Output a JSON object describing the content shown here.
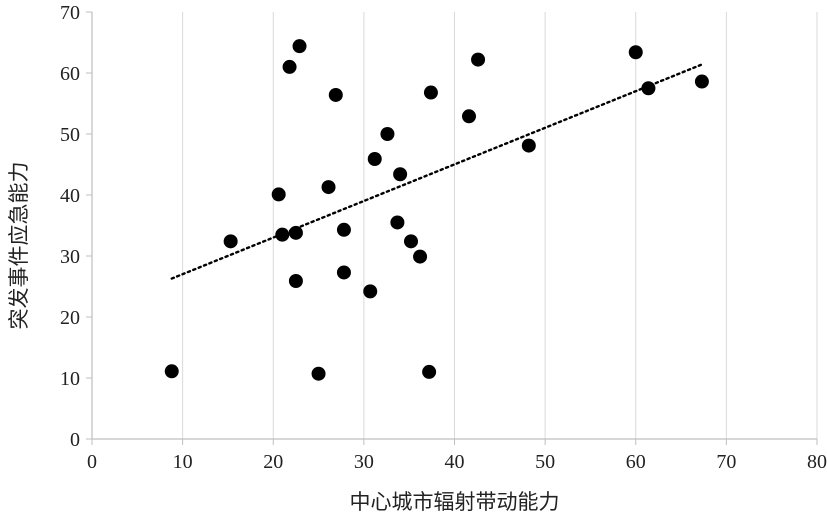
{
  "chart_data": {
    "type": "scatter",
    "xlabel": "中心城市辐射带动能力",
    "ylabel": "突发事件应急能力",
    "xlim": [
      0,
      80
    ],
    "ylim": [
      0,
      70
    ],
    "x_ticks": [
      0,
      10,
      20,
      30,
      40,
      50,
      60,
      70,
      80
    ],
    "y_ticks": [
      0,
      10,
      20,
      30,
      40,
      50,
      60,
      70
    ],
    "x_tick_labels": [
      "0",
      "10",
      "20",
      "30",
      "40",
      "50",
      "60",
      "70",
      "80"
    ],
    "y_tick_labels": [
      "0",
      "10",
      "20",
      "30",
      "40",
      "50",
      "60",
      "70"
    ],
    "grid": "vertical",
    "colors": {
      "points": "#000000",
      "grid": "#d9d9d9",
      "axis": "#bfbfbf",
      "trend": "#000000"
    },
    "points": [
      {
        "x": 8.8,
        "y": 11.1
      },
      {
        "x": 15.3,
        "y": 32.4
      },
      {
        "x": 20.6,
        "y": 40.1
      },
      {
        "x": 21.0,
        "y": 33.5
      },
      {
        "x": 21.8,
        "y": 61.0
      },
      {
        "x": 22.5,
        "y": 33.8
      },
      {
        "x": 22.5,
        "y": 25.9
      },
      {
        "x": 22.9,
        "y": 64.4
      },
      {
        "x": 25.0,
        "y": 10.7
      },
      {
        "x": 26.1,
        "y": 41.3
      },
      {
        "x": 26.9,
        "y": 56.4
      },
      {
        "x": 27.8,
        "y": 34.3
      },
      {
        "x": 27.8,
        "y": 27.3
      },
      {
        "x": 30.7,
        "y": 24.2
      },
      {
        "x": 31.2,
        "y": 45.9
      },
      {
        "x": 32.6,
        "y": 50.0
      },
      {
        "x": 33.7,
        "y": 35.5
      },
      {
        "x": 34.0,
        "y": 43.4
      },
      {
        "x": 35.2,
        "y": 32.4
      },
      {
        "x": 36.2,
        "y": 29.9
      },
      {
        "x": 37.2,
        "y": 11.0
      },
      {
        "x": 37.4,
        "y": 56.8
      },
      {
        "x": 41.6,
        "y": 52.9
      },
      {
        "x": 42.6,
        "y": 62.2
      },
      {
        "x": 48.2,
        "y": 48.1
      },
      {
        "x": 60.0,
        "y": 63.4
      },
      {
        "x": 61.4,
        "y": 57.5
      },
      {
        "x": 67.3,
        "y": 58.6
      }
    ],
    "trendline": {
      "type": "linear",
      "style": "dotted",
      "x": [
        8.8,
        67.3
      ],
      "y": [
        26.3,
        61.4
      ]
    }
  }
}
